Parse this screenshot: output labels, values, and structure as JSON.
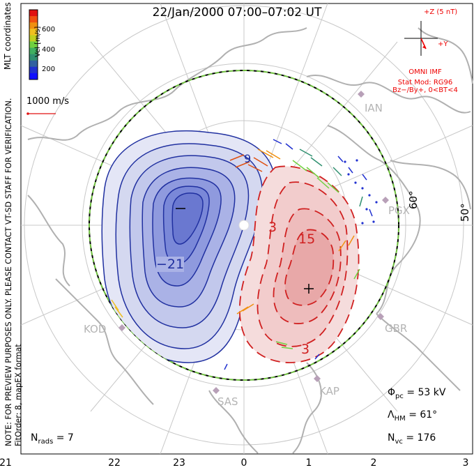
{
  "title": "22/Jan/2000 07:00–07:02 UT",
  "colorbar": {
    "label": "Vel [m/s]",
    "ticks": [
      "600",
      "400",
      "200"
    ],
    "colors": [
      "#e01010",
      "#f05010",
      "#f09010",
      "#f0c020",
      "#c0d020",
      "#70d040",
      "#40b060",
      "#309070",
      "#3060a0",
      "#2030d0",
      "#1010ff"
    ]
  },
  "side_label": "MLT coordinates",
  "reference_vector": {
    "label": "1000 m/s"
  },
  "note_line1": "NOTE: FOR PREVIEW PURPOSES ONLY. PLEASE CONTACT VT-SD STAFF FOR VERIFICATION.",
  "note_line2": "FitOrder: 8, mapEX format",
  "imf": {
    "z_label": "+Z (5 nT)",
    "y_label": "+Y",
    "source": "OMNI IMF",
    "model_line1": "Stat Mod: RG96",
    "model_line2": "Bz−/By+, 0<BT<4"
  },
  "stations": [
    "IAN",
    "PGX",
    "GBR",
    "KAP",
    "SAS",
    "KOD"
  ],
  "latitude_labels": [
    "60°",
    "50°"
  ],
  "contour_labels": {
    "negative": [
      "9",
      "−21"
    ],
    "positive": [
      "3",
      "15",
      "3"
    ]
  },
  "stats": {
    "phi_symbol": "Φ",
    "phi_sub": "pc",
    "phi_value": "= 53 kV",
    "lambda_symbol": "Λ",
    "lambda_sub": "HM",
    "lambda_value": "= 61°",
    "nvc_symbol": "N",
    "nvc_sub": "vc",
    "nvc_value": "= 176",
    "nrads_symbol": "N",
    "nrads_sub": "rads",
    "nrads_value": "= 7"
  },
  "mlt_axis": [
    "21",
    "22",
    "23",
    "0",
    "1",
    "2",
    "3"
  ],
  "colors": {
    "negative": "#3040c0",
    "positive": "#d02020",
    "boundary": "#70c040",
    "land": "#b8b8b8",
    "grid": "#c8c8c8",
    "imf": "#e00000"
  }
}
